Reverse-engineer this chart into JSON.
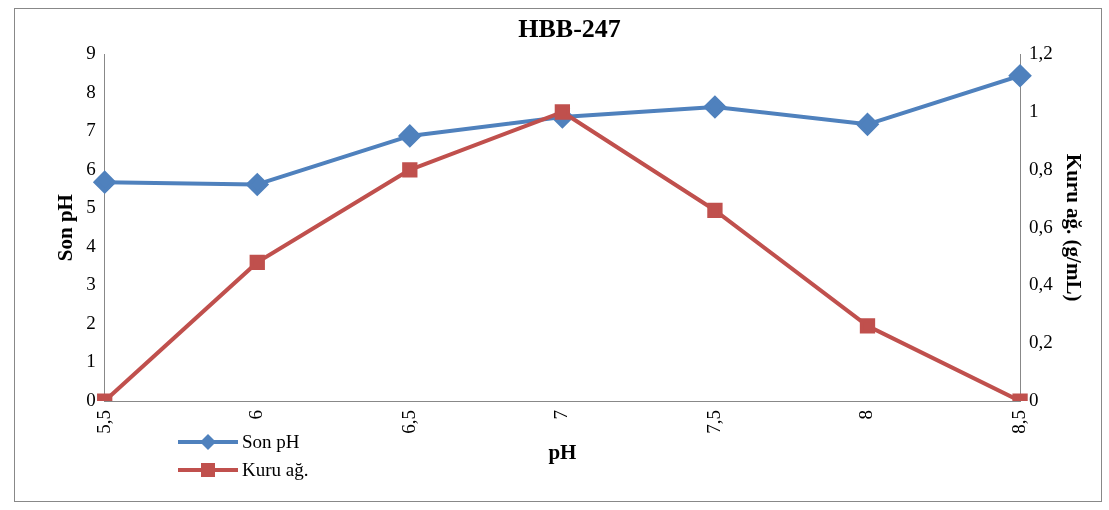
{
  "chart_data": {
    "type": "line",
    "title": "HBB-247",
    "xlabel": "pH",
    "ylabel": "Son pH",
    "y2label": "Kuru ağ. (g/mL)",
    "categories": [
      "5,5",
      "6",
      "6,5",
      "7",
      "7,5",
      "8",
      "8,5"
    ],
    "series": [
      {
        "name": "Son pH",
        "color": "#4f81bd",
        "marker": "diamond",
        "values": [
          5.68,
          5.62,
          6.88,
          7.37,
          7.63,
          7.18,
          8.44
        ]
      },
      {
        "name": "Kuru ağ.",
        "color": "#c0504d",
        "marker": "square",
        "axis": "y2",
        "values": [
          0,
          0.48,
          0.8,
          1.0,
          0.66,
          0.26,
          0
        ]
      }
    ],
    "ylim": [
      0,
      9
    ],
    "yticks": [
      0,
      1,
      2,
      3,
      4,
      5,
      6,
      7,
      8,
      9
    ],
    "y2lim": [
      0,
      1.2
    ],
    "y2ticks": [
      0,
      {
        "value": 0.2,
        "label": "0,2"
      },
      {
        "value": 0.4,
        "label": "0,4"
      },
      {
        "value": 0.6,
        "label": "0,6"
      },
      {
        "value": 0.8,
        "label": "0,8"
      },
      1,
      {
        "value": 1.2,
        "label": "1,2"
      }
    ],
    "grid": false,
    "legend": "bottom left",
    "line_style": "solid"
  }
}
